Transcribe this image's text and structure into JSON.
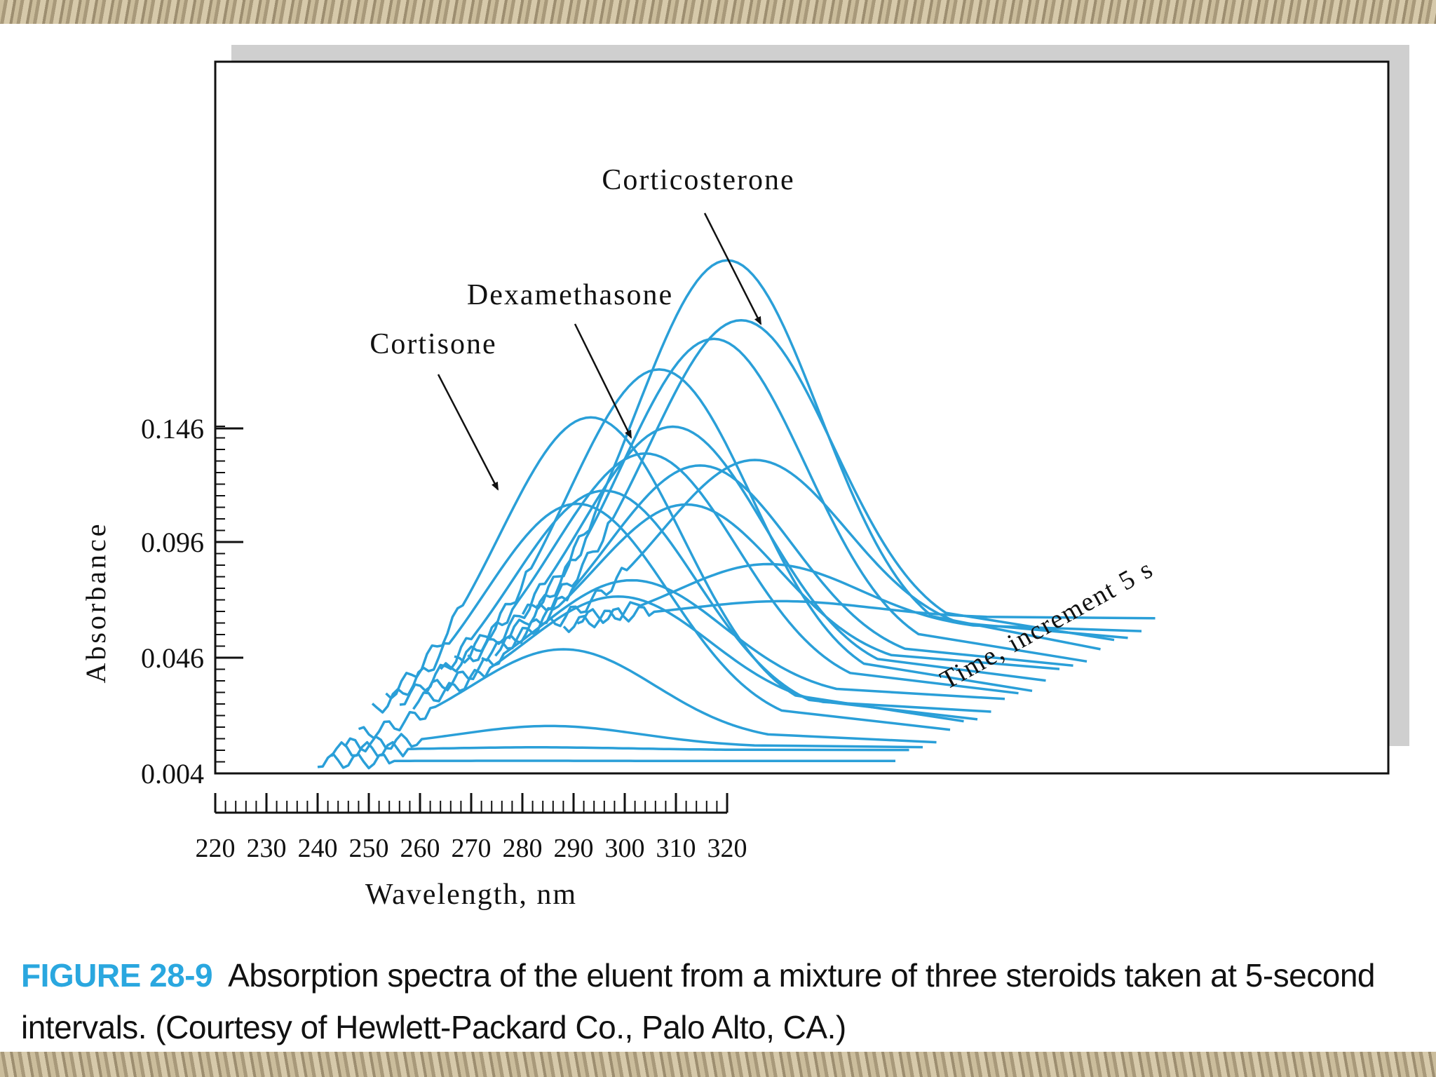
{
  "chart_data": {
    "type": "line",
    "title": "",
    "xlabel": "Wavelength, nm",
    "ylabel": "Absorbance",
    "time_axis_label": "Time, increment 5 s",
    "x_ticks": [
      220,
      230,
      240,
      250,
      260,
      270,
      280,
      290,
      300,
      310,
      320
    ],
    "y_ticks": [
      "0.004",
      "0.046",
      "0.096",
      "0.146"
    ],
    "xlim": [
      220,
      320
    ],
    "ylim": [
      0.004,
      0.146
    ],
    "grid": false,
    "line_color": "#2a9fd8",
    "annotations": [
      {
        "text": "Cortisone",
        "points_to_x": 280,
        "points_to_y": 0.134
      },
      {
        "text": "Dexamethasone",
        "points_to_x": 280,
        "points_to_y": 0.134
      },
      {
        "text": "Corticosterone",
        "points_to_x": 280,
        "points_to_y": 0.134
      }
    ],
    "series_count": 20
  },
  "caption": {
    "label": "FIGURE 28-9",
    "text": "Absorption spectra of the eluent from a mixture of three steroids taken at 5-second intervals. (Courtesy of Hewlett-Packard Co., Palo Alto, CA.)"
  }
}
